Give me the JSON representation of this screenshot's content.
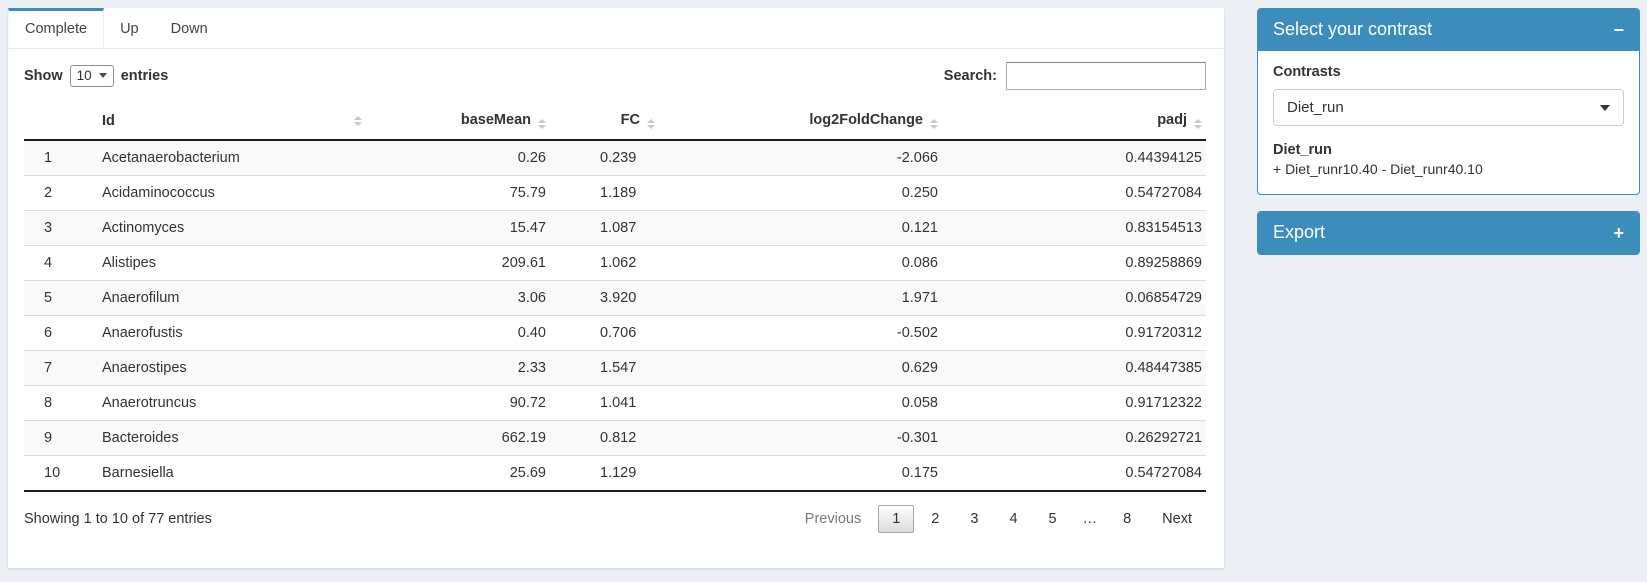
{
  "accent_color": "#3c8dbc",
  "tabs": [
    {
      "label": "Complete",
      "active": true
    },
    {
      "label": "Up",
      "active": false
    },
    {
      "label": "Down",
      "active": false
    }
  ],
  "length_menu": {
    "prefix": "Show",
    "selected": "10",
    "suffix": "entries"
  },
  "search": {
    "label": "Search:",
    "value": ""
  },
  "table": {
    "headers": [
      "",
      "Id",
      "baseMean",
      "FC",
      "log2FoldChange",
      "padj"
    ],
    "rows": [
      [
        "1",
        "Acetanaerobacterium",
        "0.26",
        "0.239",
        "-2.066",
        "0.44394125"
      ],
      [
        "2",
        "Acidaminococcus",
        "75.79",
        "1.189",
        "0.250",
        "0.54727084"
      ],
      [
        "3",
        "Actinomyces",
        "15.47",
        "1.087",
        "0.121",
        "0.83154513"
      ],
      [
        "4",
        "Alistipes",
        "209.61",
        "1.062",
        "0.086",
        "0.89258869"
      ],
      [
        "5",
        "Anaerofilum",
        "3.06",
        "3.920",
        "1.971",
        "0.06854729"
      ],
      [
        "6",
        "Anaerofustis",
        "0.40",
        "0.706",
        "-0.502",
        "0.91720312"
      ],
      [
        "7",
        "Anaerostipes",
        "2.33",
        "1.547",
        "0.629",
        "0.48447385"
      ],
      [
        "8",
        "Anaerotruncus",
        "90.72",
        "1.041",
        "0.058",
        "0.91712322"
      ],
      [
        "9",
        "Bacteroides",
        "662.19",
        "0.812",
        "-0.301",
        "0.26292721"
      ],
      [
        "10",
        "Barnesiella",
        "25.69",
        "1.129",
        "0.175",
        "0.54727084"
      ]
    ]
  },
  "footer": {
    "info": "Showing 1 to 10 of 77 entries",
    "pagination": [
      {
        "label": "Previous",
        "type": "disabled"
      },
      {
        "label": "1",
        "type": "active"
      },
      {
        "label": "2",
        "type": "page"
      },
      {
        "label": "3",
        "type": "page"
      },
      {
        "label": "4",
        "type": "page"
      },
      {
        "label": "5",
        "type": "page"
      },
      {
        "label": "…",
        "type": "ellipsis"
      },
      {
        "label": "8",
        "type": "page"
      },
      {
        "label": "Next",
        "type": "page"
      }
    ]
  },
  "contrast_panel": {
    "title": "Select your contrast",
    "collapse_icon": "−",
    "field_label": "Contrasts",
    "selected_contrast": "Diet_run",
    "detail_title": "Diet_run",
    "detail_text": "+ Diet_runr10.40 - Diet_runr40.10"
  },
  "export_panel": {
    "title": "Export",
    "expand_icon": "+"
  }
}
